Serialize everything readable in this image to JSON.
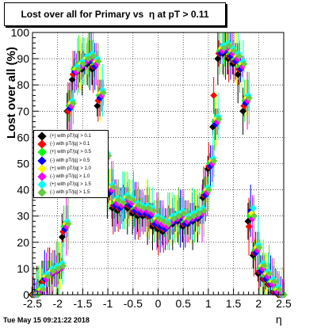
{
  "title": "Lost over all for Primary vs  η at pT > 0.11",
  "timestamp": "Tue May 15 09:21:22 2018",
  "chart_data": {
    "type": "scatter",
    "title": "Lost over all for Primary vs  η at pT > 0.11",
    "xlabel": "η",
    "ylabel": "Lost over all (%)",
    "xlim": [
      -2.5,
      2.5
    ],
    "ylim": [
      0,
      100
    ],
    "x_ticks": [
      "-2.5",
      "-2",
      "-1.5",
      "-1",
      "-0.5",
      "0",
      "0.5",
      "1",
      "1.5",
      "2",
      "2.5"
    ],
    "y_ticks": [
      "0",
      "10",
      "20",
      "30",
      "40",
      "50",
      "60",
      "70",
      "80",
      "90",
      "100"
    ],
    "grid": true,
    "legend_position": "left-middle",
    "x": [
      -2.45,
      -2.35,
      -2.25,
      -2.15,
      -2.05,
      -1.95,
      -1.85,
      -1.75,
      -1.65,
      -1.55,
      -1.45,
      -1.35,
      -1.25,
      -1.15,
      -1.05,
      -0.95,
      -0.85,
      -0.75,
      -0.65,
      -0.55,
      -0.45,
      -0.35,
      -0.25,
      -0.15,
      -0.05,
      0.05,
      0.15,
      0.25,
      0.35,
      0.45,
      0.55,
      0.65,
      0.75,
      0.85,
      0.95,
      1.05,
      1.15,
      1.25,
      1.35,
      1.45,
      1.55,
      1.65,
      1.75,
      1.85,
      1.95,
      2.05,
      2.15,
      2.25,
      2.35,
      2.45
    ],
    "series": [
      {
        "name": "(+) with pT/|q| > 0.1",
        "color": "#000000",
        "values": [
          0,
          1,
          5,
          7,
          8,
          9,
          22,
          70,
          82,
          85,
          86,
          88,
          86,
          72,
          48,
          38,
          33,
          32,
          34,
          33,
          31,
          30,
          30,
          30,
          26,
          25,
          24,
          26,
          27,
          28,
          26,
          27,
          28,
          29,
          37,
          48,
          64,
          90,
          92,
          90,
          88,
          84,
          70,
          28,
          15,
          8,
          6,
          4,
          1,
          0
        ]
      },
      {
        "name": "(-) with pT/|q| > 0.1",
        "color": "#ff0000",
        "values": [
          0,
          1,
          5,
          8,
          9,
          10,
          24,
          70,
          84,
          86,
          88,
          89,
          87,
          74,
          50,
          39,
          34,
          33,
          35,
          34,
          32,
          31,
          31,
          30,
          27,
          26,
          25,
          27,
          28,
          29,
          27,
          28,
          29,
          30,
          38,
          49,
          76,
          92,
          93,
          91,
          89,
          86,
          72,
          26,
          16,
          9,
          6,
          4,
          1,
          0
        ]
      },
      {
        "name": "(+) with pT/|q| > 0.5",
        "color": "#00ff00",
        "values": [
          0,
          2,
          6,
          8,
          9,
          10,
          26,
          72,
          86,
          88,
          89,
          90,
          88,
          76,
          52,
          40,
          35,
          34,
          36,
          35,
          33,
          32,
          32,
          31,
          28,
          27,
          26,
          28,
          29,
          30,
          28,
          29,
          30,
          31,
          39,
          50,
          66,
          93,
          94,
          92,
          90,
          87,
          74,
          30,
          17,
          10,
          7,
          5,
          2,
          0
        ]
      },
      {
        "name": "(-) with pT/|q| > 0.5",
        "color": "#0000ff",
        "values": [
          0,
          1,
          6,
          9,
          10,
          11,
          25,
          71,
          85,
          87,
          88,
          89,
          87,
          75,
          51,
          39,
          34,
          33,
          35,
          34,
          32,
          31,
          31,
          30,
          27,
          26,
          25,
          27,
          28,
          29,
          27,
          28,
          29,
          30,
          38,
          49,
          65,
          92,
          93,
          91,
          89,
          86,
          73,
          32,
          16,
          9,
          6,
          4,
          1,
          0
        ]
      },
      {
        "name": "(+) with pT/|q| > 1.0",
        "color": "#ffff00",
        "values": [
          0,
          2,
          7,
          9,
          10,
          11,
          27,
          73,
          86,
          88,
          90,
          91,
          89,
          77,
          53,
          41,
          36,
          35,
          37,
          36,
          34,
          33,
          33,
          32,
          29,
          28,
          27,
          29,
          30,
          31,
          29,
          30,
          31,
          32,
          40,
          51,
          67,
          94,
          95,
          93,
          91,
          88,
          75,
          31,
          18,
          11,
          8,
          5,
          2,
          0
        ]
      },
      {
        "name": "(-) with pT/|q| > 1.0",
        "color": "#ff00ff",
        "values": [
          0,
          1,
          6,
          8,
          9,
          10,
          26,
          72,
          85,
          87,
          89,
          90,
          88,
          76,
          52,
          40,
          35,
          34,
          36,
          35,
          33,
          32,
          32,
          31,
          28,
          27,
          26,
          28,
          29,
          30,
          28,
          29,
          30,
          31,
          39,
          50,
          66,
          93,
          94,
          92,
          90,
          87,
          74,
          29,
          17,
          10,
          7,
          4,
          1,
          0
        ]
      },
      {
        "name": "(+) with pT/|q| > 1.5",
        "color": "#00ffff",
        "values": [
          0,
          3,
          8,
          10,
          11,
          12,
          28,
          74,
          87,
          89,
          91,
          92,
          90,
          78,
          54,
          42,
          37,
          36,
          38,
          37,
          35,
          34,
          34,
          33,
          30,
          29,
          28,
          30,
          31,
          32,
          30,
          31,
          32,
          33,
          41,
          52,
          68,
          95,
          96,
          94,
          92,
          89,
          76,
          33,
          19,
          12,
          9,
          6,
          3,
          0
        ]
      },
      {
        "name": "(-) with pT/|q| > 1.5",
        "color": "#66cc44",
        "values": [
          0,
          2,
          7,
          9,
          10,
          11,
          27,
          73,
          86,
          88,
          90,
          91,
          89,
          77,
          53,
          41,
          36,
          35,
          37,
          36,
          34,
          33,
          33,
          32,
          29,
          28,
          27,
          29,
          30,
          31,
          29,
          30,
          31,
          32,
          40,
          51,
          67,
          94,
          95,
          93,
          91,
          88,
          75,
          30,
          18,
          11,
          8,
          5,
          2,
          0
        ]
      }
    ]
  }
}
